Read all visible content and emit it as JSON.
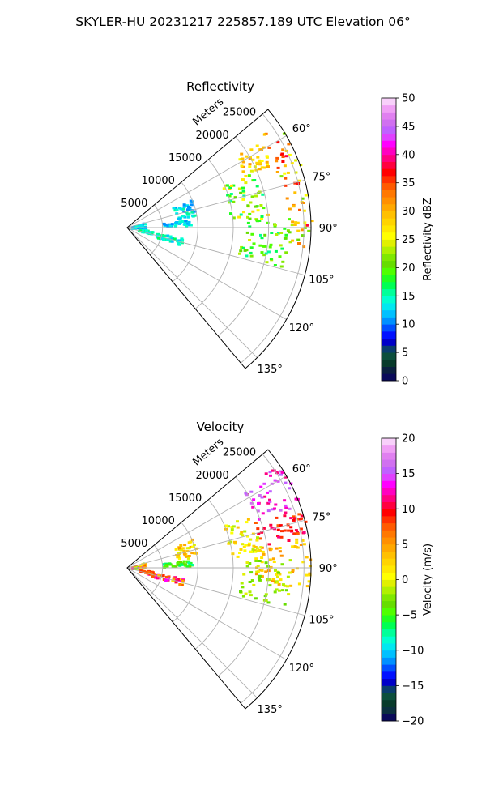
{
  "figure": {
    "title": "SKYLER-HU  20231217  225857.189 UTC Elevation 06°"
  },
  "chart_data": [
    {
      "type": "polar-sector",
      "title": "Reflectivity",
      "radial_axis_label": "Meters",
      "radial_ticks": [
        5000,
        10000,
        15000,
        20000,
        25000
      ],
      "r_max": 26000,
      "theta_range_deg": [
        50,
        140
      ],
      "azimuth_ticks": [
        "60°",
        "75°",
        "90°",
        "105°",
        "120°",
        "135°"
      ],
      "azimuth_tick_values": [
        60,
        75,
        90,
        105,
        120,
        135
      ],
      "grid": true,
      "field": "reflectivity",
      "colorbar": {
        "label": "Reflectivity dBZ",
        "vmin": 0,
        "vmax": 50,
        "ticks": [
          "0",
          "5",
          "10",
          "15",
          "20",
          "25",
          "30",
          "35",
          "40",
          "45",
          "50"
        ],
        "tick_values": [
          0,
          5,
          10,
          15,
          20,
          25,
          30,
          35,
          40,
          45,
          50
        ],
        "colors": [
          "#0a0a5a",
          "#0b1f3f",
          "#083a2a",
          "#0c4f3c",
          "#0a3d6e",
          "#0000c8",
          "#0010ff",
          "#0050ff",
          "#0090ff",
          "#00c0ff",
          "#00e8f0",
          "#00ffd0",
          "#00ff99",
          "#00ff55",
          "#20ff20",
          "#50ff00",
          "#66dd00",
          "#7fe800",
          "#b0f000",
          "#e0f000",
          "#ffff00",
          "#ffe800",
          "#ffd400",
          "#ffc000",
          "#ffa800",
          "#ff9000",
          "#ff7800",
          "#ff5a00",
          "#ff3000",
          "#ff0000",
          "#ff0040",
          "#ff0080",
          "#ff00c0",
          "#ff00ff",
          "#e040ff",
          "#c060ff",
          "#d070f0",
          "#e080f0",
          "#f0a0f5",
          "#f8d0fa"
        ]
      },
      "echo_regions": [
        {
          "theta": [
            55,
            96
          ],
          "r": [
            22500,
            26000
          ],
          "value": [
            20,
            38
          ]
        },
        {
          "theta": [
            56,
            66
          ],
          "r": [
            18000,
            22500
          ],
          "value": [
            24,
            32
          ]
        },
        {
          "theta": [
            66,
            86
          ],
          "r": [
            14500,
            20000
          ],
          "value": [
            15,
            28
          ]
        },
        {
          "theta": [
            86,
            104
          ],
          "r": [
            16000,
            23000
          ],
          "value": [
            15,
            24
          ]
        },
        {
          "theta": [
            65,
            80
          ],
          "r": [
            7000,
            10000
          ],
          "value": [
            10,
            16
          ]
        },
        {
          "theta": [
            82,
            88
          ],
          "r": [
            5000,
            9000
          ],
          "value": [
            10,
            15
          ]
        },
        {
          "theta": [
            70,
            90
          ],
          "r": [
            500,
            2500
          ],
          "value": [
            10,
            15
          ]
        },
        {
          "theta": [
            100,
            108
          ],
          "r": [
            3000,
            8000
          ],
          "value": [
            12,
            17
          ]
        },
        {
          "theta": [
            96,
            104
          ],
          "r": [
            1500,
            3500
          ],
          "value": [
            13,
            17
          ]
        }
      ]
    },
    {
      "type": "polar-sector",
      "title": "Velocity",
      "radial_axis_label": "Meters",
      "radial_ticks": [
        5000,
        10000,
        15000,
        20000,
        25000
      ],
      "r_max": 26000,
      "theta_range_deg": [
        50,
        140
      ],
      "azimuth_ticks": [
        "60°",
        "75°",
        "90°",
        "105°",
        "120°",
        "135°"
      ],
      "azimuth_tick_values": [
        60,
        75,
        90,
        105,
        120,
        135
      ],
      "grid": true,
      "field": "velocity",
      "colorbar": {
        "label": "Velocity (m/s)",
        "vmin": -20,
        "vmax": 20,
        "ticks": [
          "−20",
          "−15",
          "−10",
          "−5",
          "0",
          "5",
          "10",
          "15",
          "20"
        ],
        "tick_values": [
          -20,
          -15,
          -10,
          -5,
          0,
          5,
          10,
          15,
          20
        ],
        "colors": [
          "#0a0a5a",
          "#0b2f3f",
          "#083a2a",
          "#0c4f3c",
          "#0a3d6e",
          "#0000c8",
          "#0010ff",
          "#0050ff",
          "#0090ff",
          "#00c0ff",
          "#00e8f0",
          "#00ffd0",
          "#00ff99",
          "#00ff55",
          "#20ff20",
          "#50ff00",
          "#66dd00",
          "#7fe800",
          "#b0f000",
          "#e0f000",
          "#ffff00",
          "#ffe800",
          "#ffd400",
          "#ffc000",
          "#ffa800",
          "#ff9000",
          "#ff7800",
          "#ff5a00",
          "#ff3000",
          "#ff0000",
          "#ff0040",
          "#ff0080",
          "#ff00c0",
          "#ff00ff",
          "#e040ff",
          "#c060ff",
          "#d070f0",
          "#e080f0",
          "#f0a0f5",
          "#f8d0fa"
        ]
      },
      "echo_regions": [
        {
          "theta": [
            55,
            70
          ],
          "r": [
            19500,
            26000
          ],
          "value": [
            11,
            17
          ]
        },
        {
          "theta": [
            70,
            80
          ],
          "r": [
            19000,
            26000
          ],
          "value": [
            7,
            12
          ]
        },
        {
          "theta": [
            80,
            96
          ],
          "r": [
            18000,
            26000
          ],
          "value": [
            1,
            6
          ]
        },
        {
          "theta": [
            86,
            104
          ],
          "r": [
            16000,
            23000
          ],
          "value": [
            -4,
            0
          ]
        },
        {
          "theta": [
            66,
            84
          ],
          "r": [
            14500,
            19000
          ],
          "value": [
            -2,
            4
          ]
        },
        {
          "theta": [
            65,
            80
          ],
          "r": [
            7000,
            10000
          ],
          "value": [
            -1,
            6
          ]
        },
        {
          "theta": [
            82,
            88
          ],
          "r": [
            5000,
            9000
          ],
          "value": [
            -8,
            -3
          ]
        },
        {
          "theta": [
            70,
            90
          ],
          "r": [
            500,
            2500
          ],
          "value": [
            -6,
            14
          ]
        },
        {
          "theta": [
            100,
            108
          ],
          "r": [
            3000,
            8000
          ],
          "value": [
            1,
            14
          ]
        },
        {
          "theta": [
            96,
            104
          ],
          "r": [
            1500,
            3500
          ],
          "value": [
            6,
            10
          ]
        }
      ]
    }
  ]
}
